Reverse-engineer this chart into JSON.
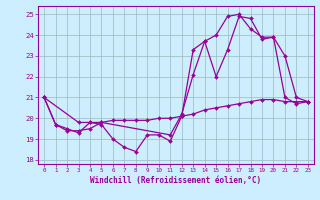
{
  "title": "",
  "xlabel": "Windchill (Refroidissement éolien,°C)",
  "bg_color": "#cceeff",
  "line_color": "#990099",
  "grid_color": "#99bbbb",
  "ylim": [
    17.8,
    25.4
  ],
  "xlim": [
    -0.5,
    23.5
  ],
  "yticks": [
    18,
    19,
    20,
    21,
    22,
    23,
    24,
    25
  ],
  "xticks": [
    0,
    1,
    2,
    3,
    4,
    5,
    6,
    7,
    8,
    9,
    10,
    11,
    12,
    13,
    14,
    15,
    16,
    17,
    18,
    19,
    20,
    21,
    22,
    23
  ],
  "series1_x": [
    0,
    1,
    2,
    3,
    4,
    5,
    6,
    7,
    8,
    9,
    10,
    11,
    12,
    13,
    14,
    15,
    16,
    17,
    18,
    19,
    20,
    21,
    22,
    23
  ],
  "series1_y": [
    21.0,
    19.7,
    19.5,
    19.3,
    19.8,
    19.7,
    19.0,
    18.6,
    18.4,
    19.2,
    19.2,
    18.9,
    20.1,
    23.3,
    23.7,
    22.0,
    23.3,
    24.9,
    24.8,
    23.8,
    23.9,
    21.0,
    20.7,
    20.8
  ],
  "series2_x": [
    0,
    1,
    2,
    3,
    4,
    5,
    6,
    7,
    8,
    9,
    10,
    11,
    12,
    13,
    14,
    15,
    16,
    17,
    18,
    19,
    20,
    21,
    22,
    23
  ],
  "series2_y": [
    21.0,
    19.7,
    19.4,
    19.4,
    19.5,
    19.8,
    19.9,
    19.9,
    19.9,
    19.9,
    20.0,
    20.0,
    20.1,
    20.2,
    20.4,
    20.5,
    20.6,
    20.7,
    20.8,
    20.9,
    20.9,
    20.8,
    20.8,
    20.8
  ],
  "series3_x": [
    0,
    3,
    4,
    5,
    11,
    12,
    13,
    14,
    15,
    16,
    17,
    18,
    19,
    20,
    21,
    22,
    23
  ],
  "series3_y": [
    21.0,
    19.8,
    19.8,
    19.8,
    19.2,
    20.2,
    22.1,
    23.7,
    24.0,
    24.9,
    25.0,
    24.3,
    23.9,
    23.9,
    23.0,
    21.0,
    20.8
  ]
}
